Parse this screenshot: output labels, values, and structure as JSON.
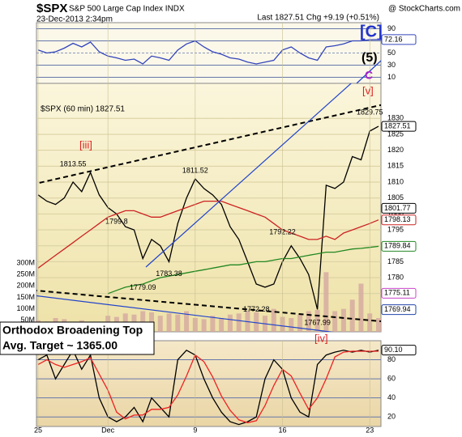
{
  "header": {
    "symbol": "$SPX",
    "name": "S&P 500 Large Cap Index INDX",
    "source": "@ StockCharts.com",
    "datetime": "23-Dec-2013 2:34pm",
    "last": "Last 1827.51  Chg +9.19 (+0.51%)"
  },
  "annotations": {
    "wave_c": "[C]",
    "wave_5": "(5)",
    "wave_c_small": "C",
    "wave_v": "[v]",
    "wave_iii": "[iii]",
    "wave_iv": "[iv]",
    "target": [
      "Orthodox Broadening Top",
      "Avg. Target ~ 1365.00"
    ]
  },
  "chart_data": [
    {
      "type": "line",
      "ylim": [
        0,
        100
      ],
      "yticks": [
        10,
        30,
        50,
        70,
        90
      ],
      "series": [
        {
          "color": "#3344bb",
          "values": [
            55,
            50,
            52,
            58,
            66,
            60,
            68,
            52,
            45,
            42,
            38,
            40,
            32,
            45,
            42,
            38,
            55,
            65,
            70,
            60,
            52,
            48,
            42,
            40,
            35,
            32,
            35,
            38,
            55,
            60,
            50,
            42,
            38,
            60,
            62,
            65,
            70,
            70,
            72,
            72.16
          ]
        }
      ]
    },
    {
      "type": "line",
      "title": "$SPX (60 min) 1827.51",
      "categories": [
        "25",
        null,
        null,
        null,
        null,
        null,
        null,
        null,
        "Dec",
        null,
        null,
        null,
        null,
        null,
        null,
        null,
        null,
        null,
        "9",
        null,
        null,
        null,
        null,
        null,
        null,
        null,
        null,
        null,
        "16",
        null,
        null,
        null,
        null,
        null,
        null,
        null,
        null,
        null,
        "23",
        null
      ],
      "ylim": [
        1763,
        1841
      ],
      "yticks": [
        1775,
        1780,
        1785,
        1790,
        1795,
        1800,
        1805,
        1810,
        1815,
        1820,
        1825,
        1830
      ],
      "series": [
        {
          "color": "#000000",
          "values": [
            1806,
            1804,
            1803,
            1805,
            1810,
            1807,
            1813,
            1806,
            1802,
            1800,
            1796,
            1795,
            1786,
            1792,
            1790,
            1785,
            1797,
            1805,
            1811,
            1808,
            1806,
            1803,
            1796,
            1792,
            1785,
            1778,
            1777,
            1778,
            1785,
            1790,
            1786,
            1781,
            1770,
            1809,
            1808,
            1810,
            1818,
            1817,
            1826,
            1827.51
          ]
        },
        {
          "color": "#cc2222",
          "values": [
            1783,
            1785,
            1787,
            1789,
            1791,
            1793,
            1795,
            1797,
            1799,
            1800,
            1801,
            1801,
            1800,
            1799,
            1799,
            1800,
            1801,
            1802,
            1803,
            1804,
            1804,
            1804,
            1803,
            1802,
            1801,
            1800,
            1799,
            1797,
            1795,
            1794,
            1793,
            1792,
            1792,
            1793,
            1792,
            1794,
            1795,
            1796,
            1797,
            1798.13
          ]
        },
        {
          "color": "#228822",
          "values": [
            null,
            null,
            null,
            null,
            null,
            null,
            null,
            null,
            1775,
            1776,
            1777,
            1777.5,
            1778,
            1779,
            1780,
            1780.5,
            1781,
            1781.5,
            1782,
            1782.5,
            1783,
            1783.5,
            1784,
            1784,
            1784.5,
            1785,
            1785,
            1785.5,
            1786,
            1786,
            1786.5,
            1787,
            1787.5,
            1788,
            1788,
            1788.5,
            1789,
            1789.2,
            1789.5,
            1789.84
          ]
        }
      ],
      "levels": [
        {
          "value": 1801.77,
          "color": "#000000"
        },
        {
          "value": 1775.11,
          "color": "#cc44cc"
        },
        {
          "value": 1769.94,
          "color": "#2244aa"
        }
      ],
      "pivots": [
        {
          "index": 4,
          "value": 1813.55
        },
        {
          "index": 9,
          "value": 1799.8
        },
        {
          "index": 12,
          "value": 1779.09
        },
        {
          "index": 15,
          "value": 1783.38
        },
        {
          "index": 18,
          "value": 1811.52
        },
        {
          "index": 25,
          "value": 1772.28
        },
        {
          "index": 28,
          "value": 1792.22
        },
        {
          "index": 32,
          "value": 1767.99
        },
        {
          "index": 38,
          "value": 1829.75
        }
      ],
      "volume": {
        "color": "#d4a8a0",
        "ylim": [
          0,
          300000000
        ],
        "yticks": [
          {
            "value": 50000000,
            "label": "50M"
          },
          {
            "value": 100000000,
            "label": "100M"
          },
          {
            "value": 150000000,
            "label": "150M"
          },
          {
            "value": 200000000,
            "label": "200M"
          },
          {
            "value": 250000000,
            "label": "250M"
          },
          {
            "value": 300000000,
            "label": "300M"
          }
        ],
        "values": [
          50000000,
          45000000,
          60000000,
          55000000,
          40000000,
          50000000,
          30000000,
          20000000,
          70000000,
          65000000,
          80000000,
          75000000,
          90000000,
          85000000,
          70000000,
          80000000,
          75000000,
          90000000,
          60000000,
          55000000,
          70000000,
          60000000,
          75000000,
          80000000,
          90000000,
          85000000,
          70000000,
          100000000,
          65000000,
          60000000,
          75000000,
          90000000,
          95000000,
          260000000,
          90000000,
          100000000,
          140000000,
          210000000,
          80000000,
          60000000
        ]
      }
    },
    {
      "type": "line",
      "ylim": [
        10,
        100
      ],
      "yticks": [
        20,
        40,
        60,
        80
      ],
      "last_label": "90.10",
      "series": [
        {
          "color": "#000000",
          "values": [
            80,
            85,
            60,
            75,
            90,
            70,
            85,
            40,
            20,
            15,
            20,
            30,
            15,
            40,
            30,
            20,
            80,
            90,
            85,
            60,
            40,
            25,
            15,
            12,
            15,
            20,
            60,
            80,
            70,
            40,
            25,
            20,
            75,
            85,
            88,
            90,
            88,
            90,
            88,
            90.1
          ]
        },
        {
          "color": "#ee2222",
          "values": [
            75,
            80,
            75,
            72,
            75,
            78,
            82,
            65,
            48,
            25,
            18,
            22,
            22,
            28,
            28,
            30,
            43,
            63,
            85,
            78,
            62,
            42,
            27,
            17,
            14,
            16,
            32,
            53,
            70,
            63,
            45,
            28,
            40,
            60,
            83,
            88,
            89,
            89,
            89,
            89
          ]
        }
      ]
    }
  ]
}
